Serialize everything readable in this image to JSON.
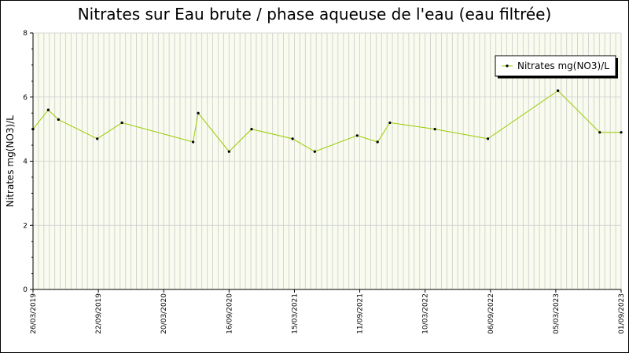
{
  "chart_data": {
    "type": "line",
    "title": "Nitrates sur Eau brute / phase aqueuse de l'eau (eau filtrée)",
    "xlabel": "",
    "ylabel": "Nitrates mg(NO3)/L",
    "ylim": [
      0,
      8
    ],
    "yticks": [
      "0",
      "2",
      "4",
      "6",
      "8"
    ],
    "xlim": [
      "2019-03-26",
      "2023-09-01"
    ],
    "xticks": [
      {
        "date": "2019-03-26",
        "label": "26/03/2019"
      },
      {
        "date": "2019-09-22",
        "label": "22/09/2019"
      },
      {
        "date": "2020-03-20",
        "label": "20/03/2020"
      },
      {
        "date": "2020-09-16",
        "label": "16/09/2020"
      },
      {
        "date": "2021-03-15",
        "label": "15/03/2021"
      },
      {
        "date": "2021-09-11",
        "label": "11/09/2021"
      },
      {
        "date": "2022-03-10",
        "label": "10/03/2022"
      },
      {
        "date": "2022-09-06",
        "label": "06/09/2022"
      },
      {
        "date": "2023-03-05",
        "label": "05/03/2023"
      },
      {
        "date": "2023-09-01",
        "label": "01/09/2023"
      }
    ],
    "grid": true,
    "legend_position": "top-right",
    "series": [
      {
        "name": "Nitrates mg(NO3)/L",
        "color": "#99cc00",
        "marker_color": "#000000",
        "x": [
          "2019-03-26",
          "2019-05-07",
          "2019-06-04",
          "2019-09-19",
          "2019-11-26",
          "2020-06-09",
          "2020-06-23",
          "2020-09-16",
          "2020-11-17",
          "2021-03-10",
          "2021-05-10",
          "2021-09-04",
          "2021-10-30",
          "2021-12-03",
          "2022-04-06",
          "2022-08-30",
          "2023-03-11",
          "2023-07-04",
          "2023-09-01"
        ],
        "y": [
          5.0,
          5.6,
          5.3,
          4.7,
          5.2,
          4.6,
          5.5,
          4.3,
          5.0,
          4.7,
          4.3,
          4.8,
          4.6,
          5.2,
          5.0,
          4.7,
          6.2,
          4.9,
          4.9
        ]
      }
    ]
  },
  "colors": {
    "plot_background": "#f8fbee",
    "grid": "#cccccc",
    "line": "#99cc00"
  }
}
